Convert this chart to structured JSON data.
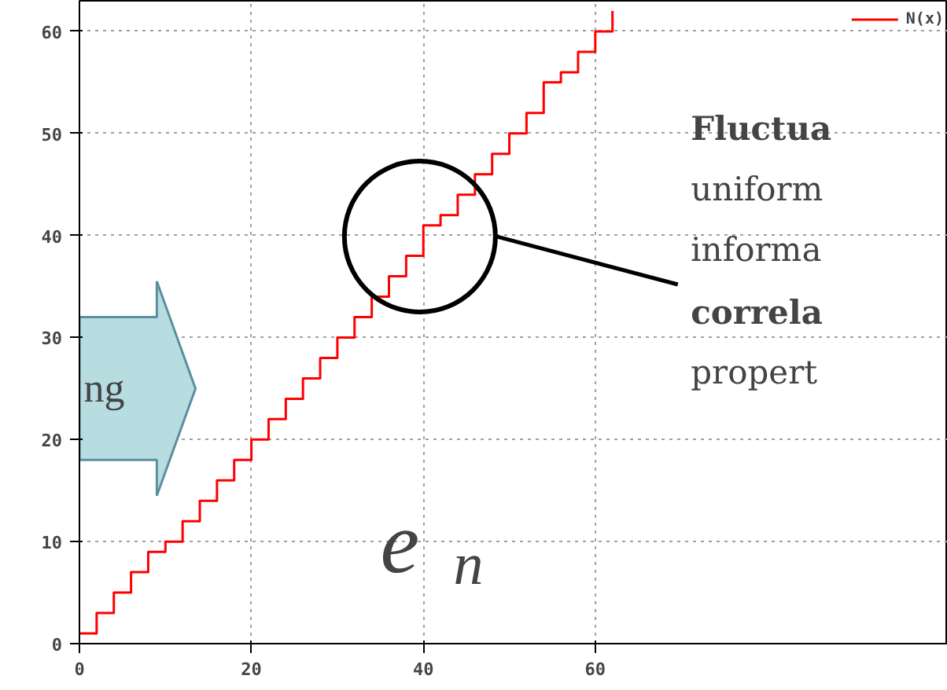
{
  "chart_data": {
    "type": "step",
    "x": [
      0,
      2,
      4,
      6,
      8,
      10,
      12,
      14,
      16,
      18,
      20,
      22,
      24,
      26,
      28,
      30,
      32,
      34,
      36,
      38,
      40,
      42,
      44,
      46,
      48,
      50,
      52,
      54,
      56,
      58,
      60,
      62
    ],
    "series": [
      {
        "name": "N(x)",
        "color": "#ff0000",
        "values": [
          1,
          3,
          5,
          7,
          9,
          10,
          12,
          14,
          16,
          18,
          20,
          22,
          24,
          26,
          28,
          30,
          32,
          34,
          36,
          38,
          41,
          42,
          44,
          46,
          48,
          50,
          52,
          55,
          56,
          58,
          60,
          62
        ]
      }
    ],
    "xlim": [
      0,
      101
    ],
    "ylim": [
      0,
      63
    ],
    "xticks": [
      0,
      20,
      40,
      60
    ],
    "yticks": [
      0,
      10,
      20,
      30,
      40,
      50,
      60
    ],
    "grid": true,
    "legend": "top right",
    "line_style": "solid",
    "annotations": [
      "ng",
      "e$_{n}$",
      "Fluctua",
      "uniform",
      "informa",
      "correla",
      "propert"
    ]
  }
}
